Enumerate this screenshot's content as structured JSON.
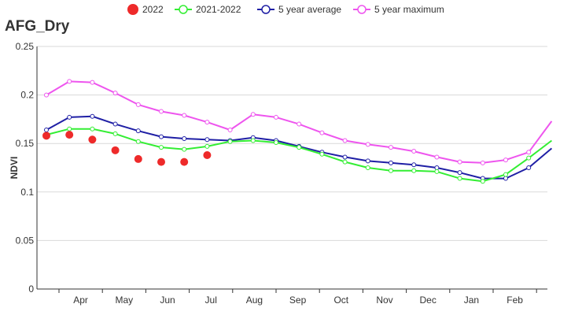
{
  "chart_data": {
    "type": "line",
    "title": "AFG_Dry",
    "ylabel": "NDVI",
    "xlabel": "",
    "ylim": [
      0,
      0.25
    ],
    "yticks": [
      "0",
      "0.05",
      "0.1",
      "0.15",
      "0.2",
      "0.25"
    ],
    "ytick_values": [
      0,
      0.05,
      0.1,
      0.15,
      0.2,
      0.25
    ],
    "month_labels": [
      "Apr",
      "May",
      "Jun",
      "Jul",
      "Aug",
      "Sep",
      "Oct",
      "Nov",
      "Dec",
      "Jan",
      "Feb"
    ],
    "grid": true,
    "legend_position": "top-center",
    "series": [
      {
        "name": "2022",
        "style": "scatter",
        "color": "#ee2a2a",
        "values": [
          0.158,
          0.159,
          0.154,
          0.143,
          0.134,
          0.131,
          0.131,
          0.138
        ]
      },
      {
        "name": "2021-2022",
        "style": "line",
        "color": "#33ee33",
        "values": [
          0.159,
          0.165,
          0.165,
          0.16,
          0.152,
          0.146,
          0.144,
          0.147,
          0.152,
          0.153,
          0.151,
          0.146,
          0.139,
          0.131,
          0.125,
          0.122,
          0.122,
          0.121,
          0.114,
          0.111,
          0.118,
          0.135,
          0.153
        ]
      },
      {
        "name": "5 year average",
        "style": "line",
        "color": "#1f1fa5",
        "values": [
          0.164,
          0.177,
          0.178,
          0.17,
          0.163,
          0.157,
          0.155,
          0.154,
          0.153,
          0.156,
          0.153,
          0.147,
          0.141,
          0.136,
          0.132,
          0.13,
          0.128,
          0.125,
          0.12,
          0.114,
          0.114,
          0.125,
          0.145
        ]
      },
      {
        "name": "5 year maximum",
        "style": "line",
        "color": "#ee55ee",
        "values": [
          0.2,
          0.214,
          0.213,
          0.202,
          0.19,
          0.183,
          0.179,
          0.172,
          0.164,
          0.18,
          0.177,
          0.17,
          0.161,
          0.153,
          0.149,
          0.146,
          0.142,
          0.136,
          0.131,
          0.13,
          0.133,
          0.141,
          0.173
        ]
      }
    ]
  }
}
